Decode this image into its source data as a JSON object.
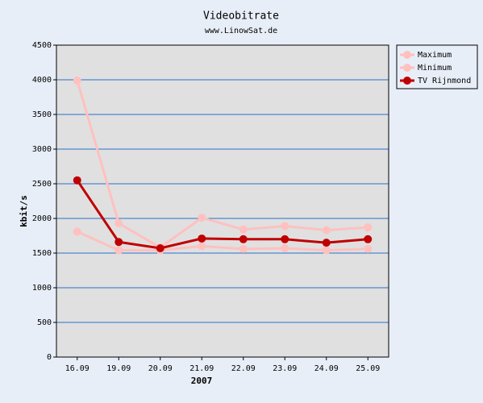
{
  "chart_data": {
    "type": "line",
    "title": "Videobitrate",
    "subtitle": "www.LinowSat.de",
    "x_label": "2007",
    "y_label": "kbit/s",
    "categories": [
      "16.09",
      "19.09",
      "20.09",
      "21.09",
      "22.09",
      "23.09",
      "24.09",
      "25.09"
    ],
    "series": [
      {
        "name": "Maximum",
        "color": "#ffc0c0",
        "values": [
          3990,
          1930,
          1580,
          2010,
          1840,
          1890,
          1830,
          1870
        ]
      },
      {
        "name": "Minimum",
        "color": "#ffc0c0",
        "values": [
          1810,
          1540,
          1540,
          1600,
          1560,
          1570,
          1540,
          1560
        ]
      },
      {
        "name": "TV Rijnmond",
        "color": "#c00000",
        "values": [
          2550,
          1660,
          1570,
          1710,
          1700,
          1700,
          1650,
          1700
        ]
      }
    ],
    "ylim": [
      0,
      4500
    ],
    "yticks": [
      0,
      500,
      1000,
      1500,
      2000,
      2500,
      3000,
      3500,
      4000,
      4500
    ],
    "grid": true,
    "legend": "right"
  }
}
